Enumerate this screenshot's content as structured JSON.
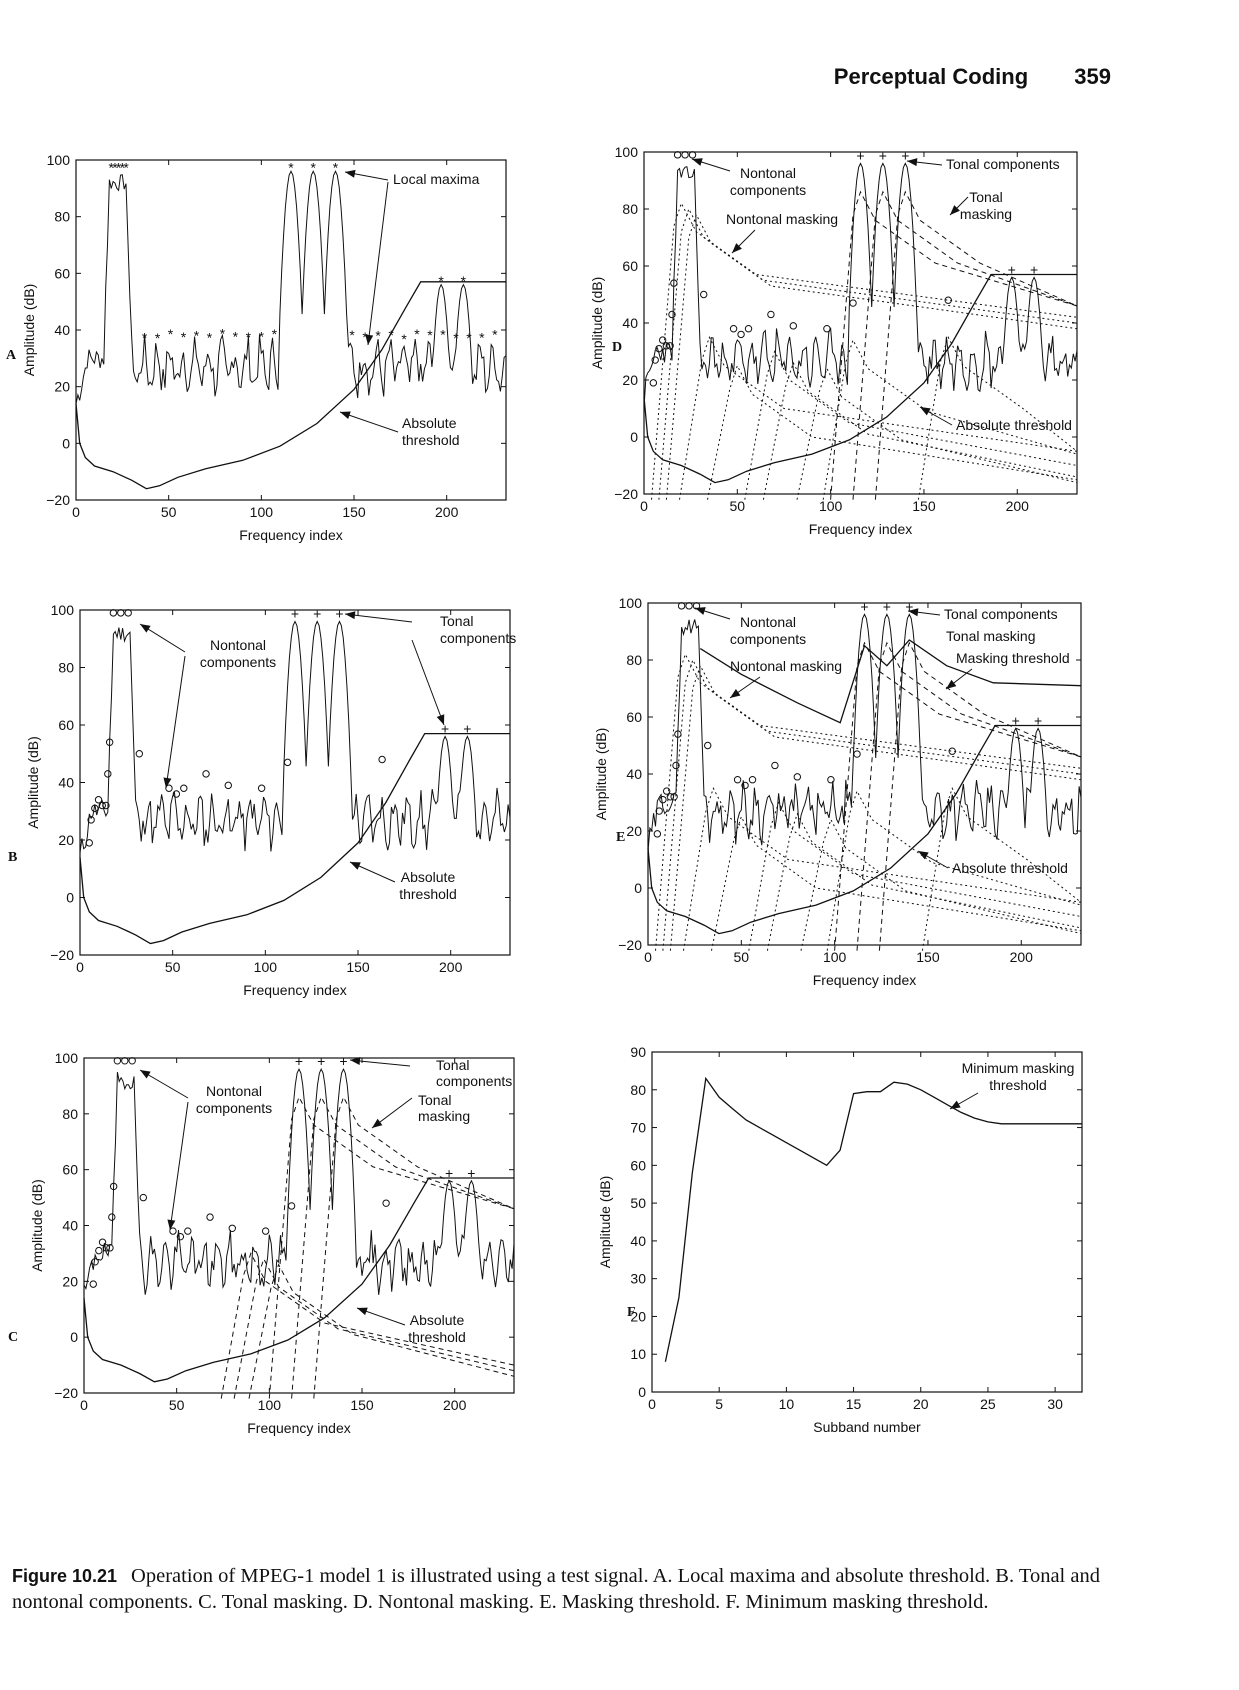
{
  "page": {
    "header_title": "Perceptual Coding",
    "page_number": "359"
  },
  "caption": {
    "label": "Figure 10.21",
    "text": "Operation of MPEG-1 model 1 is illustrated using a test signal. A. Local maxima and absolute threshold. B. Tonal and nontonal components. C. Tonal masking. D. Nontonal masking. E. Masking threshold. F. Minimum masking threshold."
  },
  "colors": {
    "ink": "#111111",
    "background": "#ffffff"
  },
  "chart_data": [
    {
      "panel": "A",
      "type": "line",
      "xlabel": "Frequency index",
      "ylabel": "Amplitude (dB)",
      "xlim": [
        0,
        232
      ],
      "ylim": [
        -20,
        100
      ],
      "xticks": [
        0,
        50,
        100,
        150,
        200
      ],
      "yticks": [
        -20,
        0,
        20,
        40,
        60,
        80,
        100
      ],
      "annotations": [
        "Local maxima",
        "Absolute threshold"
      ],
      "markers": "asterisk",
      "series": [
        {
          "name": "Absolute threshold",
          "x": [
            0,
            2,
            5,
            10,
            20,
            30,
            38,
            45,
            55,
            70,
            90,
            110,
            130,
            150,
            165,
            178,
            186,
            232
          ],
          "y": [
            14,
            0,
            -5,
            -8,
            -10,
            -13,
            -16,
            -15,
            -12,
            -9,
            -6,
            -1,
            7,
            19,
            33,
            48,
            57,
            57
          ]
        }
      ]
    },
    {
      "panel": "B",
      "type": "line",
      "xlabel": "Frequency index",
      "ylabel": "Amplitude (dB)",
      "xlim": [
        0,
        232
      ],
      "ylim": [
        -20,
        100
      ],
      "xticks": [
        0,
        50,
        100,
        150,
        200
      ],
      "yticks": [
        -20,
        0,
        20,
        40,
        60,
        80,
        100
      ],
      "annotations": [
        "Nontonal components",
        "Tonal components",
        "Absolute threshold"
      ],
      "markers": "circle (nontonal), plus (tonal)"
    },
    {
      "panel": "C",
      "type": "line",
      "xlabel": "Frequency index",
      "ylabel": "Amplitude (dB)",
      "xlim": [
        0,
        232
      ],
      "ylim": [
        -20,
        100
      ],
      "xticks": [
        0,
        50,
        100,
        150,
        200
      ],
      "yticks": [
        -20,
        0,
        20,
        40,
        60,
        80,
        100
      ],
      "annotations": [
        "Nontonal components",
        "Tonal components",
        "Tonal masking",
        "Absolute threshold"
      ]
    },
    {
      "panel": "D",
      "type": "line",
      "xlabel": "Frequency index",
      "ylabel": "Amplitude (dB)",
      "xlim": [
        0,
        232
      ],
      "ylim": [
        -20,
        100
      ],
      "xticks": [
        0,
        50,
        100,
        150,
        200
      ],
      "yticks": [
        -20,
        0,
        20,
        40,
        60,
        80,
        100
      ],
      "annotations": [
        "Nontonal components",
        "Tonal components",
        "Nontonal masking",
        "Tonal masking",
        "Absolute threshold"
      ]
    },
    {
      "panel": "E",
      "type": "line",
      "xlabel": "Frequency index",
      "ylabel": "Amplitude (dB)",
      "xlim": [
        0,
        232
      ],
      "ylim": [
        -20,
        100
      ],
      "xticks": [
        0,
        50,
        100,
        150,
        200
      ],
      "yticks": [
        -20,
        0,
        20,
        40,
        60,
        80,
        100
      ],
      "annotations": [
        "Nontonal components",
        "Tonal components",
        "Tonal masking",
        "Nontonal masking",
        "Masking threshold",
        "Absolute threshold"
      ]
    },
    {
      "panel": "F",
      "type": "line",
      "xlabel": "Subband number",
      "ylabel": "Amplitude (dB)",
      "xlim": [
        0,
        32
      ],
      "ylim": [
        0,
        90
      ],
      "xticks": [
        0,
        5,
        10,
        15,
        20,
        25,
        30
      ],
      "yticks": [
        0,
        10,
        20,
        30,
        40,
        50,
        60,
        70,
        80,
        90
      ],
      "annotations": [
        "Minimum masking threshold"
      ],
      "series": [
        {
          "name": "Minimum masking threshold",
          "x": [
            1,
            2,
            3,
            4,
            5,
            6,
            7,
            8,
            9,
            10,
            11,
            12,
            13,
            14,
            15,
            16,
            17,
            18,
            19,
            20,
            21,
            22,
            23,
            24,
            25,
            26,
            27,
            28,
            29,
            30,
            31,
            32
          ],
          "y": [
            8,
            25,
            58,
            83,
            78,
            75,
            72,
            70,
            68,
            66,
            64,
            62,
            60,
            64,
            79,
            79.5,
            79.5,
            82,
            81.5,
            80,
            78,
            76,
            74,
            72.5,
            71.5,
            71,
            71,
            71,
            71,
            71,
            71,
            71
          ]
        }
      ]
    }
  ]
}
